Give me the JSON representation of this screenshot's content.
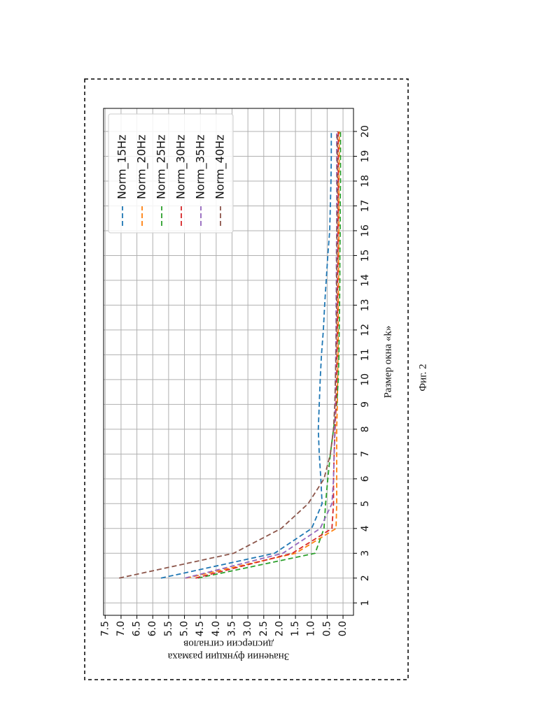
{
  "chart_data": {
    "type": "line",
    "xlabel": "Размер окна «k»",
    "ylabel_line1": "Значении функции размаха",
    "ylabel_line2": "дисперсии сигналов",
    "figure_caption": "Фиг. 2",
    "x": [
      2,
      3,
      4,
      5,
      6,
      7,
      8,
      9,
      10,
      11,
      12,
      13,
      14,
      15,
      16,
      17,
      18,
      19,
      20
    ],
    "series": [
      {
        "name": "Norm_15Hz",
        "color": "#1f77b4",
        "values": [
          5.74,
          2.16,
          0.99,
          0.66,
          0.7,
          0.75,
          0.78,
          0.75,
          0.72,
          0.68,
          0.62,
          0.58,
          0.53,
          0.48,
          0.42,
          0.4,
          0.38,
          0.37,
          0.37
        ]
      },
      {
        "name": "Norm_20Hz",
        "color": "#ff7f0e",
        "values": [
          4.94,
          1.5,
          0.22,
          0.2,
          0.2,
          0.2,
          0.2,
          0.18,
          0.17,
          0.16,
          0.15,
          0.15,
          0.14,
          0.14,
          0.13,
          0.13,
          0.13,
          0.12,
          0.12
        ]
      },
      {
        "name": "Norm_25Hz",
        "color": "#2ca02c",
        "values": [
          4.58,
          0.88,
          0.6,
          0.55,
          0.48,
          0.4,
          0.3,
          0.2,
          0.15,
          0.13,
          0.12,
          0.11,
          0.1,
          0.1,
          0.09,
          0.09,
          0.08,
          0.08,
          0.08
        ]
      },
      {
        "name": "Norm_30Hz",
        "color": "#d62728",
        "values": [
          4.65,
          1.6,
          0.35,
          0.3,
          0.3,
          0.28,
          0.25,
          0.22,
          0.2,
          0.19,
          0.18,
          0.17,
          0.17,
          0.16,
          0.16,
          0.15,
          0.15,
          0.15,
          0.15
        ]
      },
      {
        "name": "Norm_35Hz",
        "color": "#9467bd",
        "values": [
          4.98,
          1.9,
          0.72,
          0.35,
          0.3,
          0.28,
          0.26,
          0.25,
          0.24,
          0.23,
          0.22,
          0.22,
          0.21,
          0.21,
          0.2,
          0.2,
          0.2,
          0.2,
          0.2
        ]
      },
      {
        "name": "Norm_40Hz",
        "color": "#8c564b",
        "values": [
          7.06,
          3.45,
          1.95,
          1.1,
          0.6,
          0.4,
          0.3,
          0.26,
          0.24,
          0.22,
          0.21,
          0.2,
          0.2,
          0.19,
          0.19,
          0.18,
          0.18,
          0.18,
          0.18
        ]
      }
    ],
    "xlim": [
      0.5,
      20.93
    ],
    "ylim": [
      -0.33,
      7.55
    ],
    "xticks": [
      1,
      2,
      3,
      4,
      5,
      6,
      7,
      8,
      9,
      10,
      11,
      12,
      13,
      14,
      15,
      16,
      17,
      18,
      19,
      20
    ],
    "yticks": [
      {
        "value": 0,
        "label": "0.0"
      },
      0.5,
      {
        "value": 1,
        "label": "1.0"
      },
      1.5,
      {
        "value": 2,
        "label": "2.0"
      },
      2.5,
      {
        "value": 3,
        "label": "3.0"
      },
      3.5,
      {
        "value": 4,
        "label": "4.0"
      },
      4.5,
      {
        "value": 5,
        "label": "5.0"
      },
      5.5,
      {
        "value": 6,
        "label": "6.0"
      },
      6.5,
      {
        "value": 7,
        "label": "7.0"
      },
      7.5
    ],
    "grid": true,
    "legend": "upper right"
  }
}
